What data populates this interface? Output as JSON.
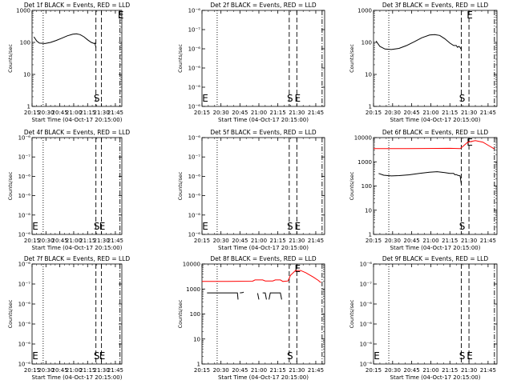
{
  "figure": {
    "panels": [
      {
        "title": "Det 1f BLACK = Events, RED = LLD",
        "ylabel": "Counts/sec",
        "xlabel": "Start Time (04-Oct-17 20:15:00)"
      },
      {
        "title": "Det 2f BLACK = Events, RED = LLD",
        "ylabel": "Counts/sec",
        "xlabel": "Start Time (04-Oct-17 20:15:00)"
      },
      {
        "title": "Det 3f BLACK = Events, RED = LLD",
        "ylabel": "Counts/sec",
        "xlabel": "Start Time (04-Oct-17 20:15:00)"
      },
      {
        "title": "Det 4f BLACK = Events, RED = LLD",
        "ylabel": "Counts/sec",
        "xlabel": "Start Time (04-Oct-17 20:15:00)"
      },
      {
        "title": "Det 5f BLACK = Events, RED = LLD",
        "ylabel": "Counts/sec",
        "xlabel": "Start Time (04-Oct-17 20:15:00)"
      },
      {
        "title": "Det 6f BLACK = Events, RED = LLD",
        "ylabel": "Counts/sec",
        "xlabel": "Start Time (04-Oct-17 20:15:00)"
      },
      {
        "title": "Det 7f BLACK = Events, RED = LLD",
        "ylabel": "Counts/sec",
        "xlabel": "Start Time (04-Oct-17 20:15:00)"
      },
      {
        "title": "Det 8f BLACK = Events, RED = LLD",
        "ylabel": "Counts/sec",
        "xlabel": "Start Time (04-Oct-17 20:15:00)"
      },
      {
        "title": "Det 9f BLACK = Events, RED = LLD",
        "ylabel": "Counts/sec",
        "xlabel": "Start Time (04-Oct-17 20:15:00)"
      }
    ]
  },
  "chart_data": [
    {
      "type": "line",
      "panel": 1,
      "title": "Det 1f BLACK = Events, RED = LLD",
      "xlabel": "Start Time (04-Oct-17 20:15:00)",
      "ylabel": "Counts/sec",
      "x_ticks": [
        "20:15",
        "20:30",
        "20:45",
        "21:00",
        "21:15",
        "21:30",
        "21:45"
      ],
      "xlim_minutes": [
        0,
        97
      ],
      "y_scale": "log",
      "ylim": [
        1,
        1000
      ],
      "y_ticks": [
        "1",
        "10",
        "100",
        "1000"
      ],
      "markers": [
        {
          "label": "",
          "x_minutes": 12,
          "style": "dotted"
        },
        {
          "label": "S",
          "x_minutes": 69,
          "style": "dashed"
        },
        {
          "label": "",
          "x_minutes": 75,
          "style": "dashed"
        },
        {
          "label": "E",
          "x_minutes": 95,
          "style": "dashdot"
        }
      ],
      "series": [
        {
          "color": "#000000",
          "points": [
            [
              2,
              150
            ],
            [
              5,
              110
            ],
            [
              8,
              95
            ],
            [
              14,
              92
            ],
            [
              20,
              100
            ],
            [
              26,
              115
            ],
            [
              32,
              135
            ],
            [
              38,
              160
            ],
            [
              44,
              180
            ],
            [
              48,
              185
            ],
            [
              52,
              175
            ],
            [
              56,
              150
            ],
            [
              60,
              120
            ],
            [
              64,
              100
            ],
            [
              66,
              95
            ],
            [
              67,
              92
            ],
            [
              68,
              95
            ],
            [
              68.5,
              80
            ],
            [
              69,
              70
            ]
          ]
        }
      ]
    },
    {
      "type": "line",
      "panel": 2,
      "title": "Det 2f BLACK = Events, RED = LLD",
      "xlabel": "Start Time (04-Oct-17 20:15:00)",
      "ylabel": "Counts/sec",
      "x_ticks": [
        "20:15",
        "20:30",
        "20:45",
        "21:00",
        "21:15",
        "21:30",
        "21:45"
      ],
      "xlim_minutes": [
        0,
        97
      ],
      "y_scale": "log",
      "ylim": [
        1,
        1e-06
      ],
      "y_ticks": [
        "10⁻⁶",
        "10⁻⁶",
        "10⁻⁶",
        "10⁻⁶",
        "10⁻⁷",
        "10⁻⁶"
      ],
      "markers": [
        {
          "label": "",
          "x_minutes": 12,
          "style": "dotted"
        },
        {
          "label": "S",
          "x_minutes": 69,
          "style": "dashed"
        },
        {
          "label": "E",
          "x_minutes": 75,
          "style": "dashed"
        },
        {
          "label": "",
          "x_minutes": 95,
          "style": "dashdot"
        }
      ],
      "corner_label": "E",
      "series": []
    },
    {
      "type": "line",
      "panel": 3,
      "title": "Det 3f BLACK = Events, RED = LLD",
      "xlabel": "Start Time (04-Oct-17 20:15:00)",
      "ylabel": "Counts/sec",
      "x_ticks": [
        "20:15",
        "20:30",
        "20:45",
        "21:00",
        "21:15",
        "21:30",
        "21:45"
      ],
      "xlim_minutes": [
        0,
        97
      ],
      "y_scale": "log",
      "ylim": [
        1,
        1000
      ],
      "y_ticks": [
        "1",
        "10",
        "100",
        "1000"
      ],
      "markers": [
        {
          "label": "",
          "x_minutes": 12,
          "style": "dotted"
        },
        {
          "label": "S",
          "x_minutes": 69,
          "style": "dashed"
        },
        {
          "label": "E",
          "x_minutes": 75,
          "style": "dashed"
        },
        {
          "label": "",
          "x_minutes": 95,
          "style": "dashdot"
        }
      ],
      "series": [
        {
          "color": "#000000",
          "points": [
            [
              2,
              110
            ],
            [
              5,
              75
            ],
            [
              9,
              62
            ],
            [
              14,
              60
            ],
            [
              20,
              65
            ],
            [
              26,
              80
            ],
            [
              32,
              105
            ],
            [
              38,
              140
            ],
            [
              44,
              170
            ],
            [
              48,
              175
            ],
            [
              52,
              165
            ],
            [
              56,
              130
            ],
            [
              60,
              95
            ],
            [
              63,
              80
            ],
            [
              65,
              80
            ],
            [
              66,
              70
            ],
            [
              67,
              75
            ],
            [
              68,
              70
            ],
            [
              69,
              60
            ]
          ]
        }
      ]
    },
    {
      "type": "line",
      "panel": 4,
      "title": "Det 4f BLACK = Events, RED = LLD",
      "xlabel": "Start Time (04-Oct-17 20:15:00)",
      "ylabel": "Counts/sec",
      "x_ticks": [
        "20:15",
        "20:30",
        "20:45",
        "21:00",
        "21:15",
        "21:30",
        "21:45"
      ],
      "xlim_minutes": [
        0,
        97
      ],
      "y_scale": "log",
      "ylim": [
        1,
        1e-06
      ],
      "y_ticks": [
        "10⁻⁶",
        "10⁻⁶",
        "10⁻⁶",
        "10⁻⁶",
        "10⁻⁷",
        "10⁻⁶"
      ],
      "markers": [
        {
          "label": "",
          "x_minutes": 12,
          "style": "dotted"
        },
        {
          "label": "S",
          "x_minutes": 69,
          "style": "dashed"
        },
        {
          "label": "E",
          "x_minutes": 75,
          "style": "dashed"
        },
        {
          "label": "",
          "x_minutes": 95,
          "style": "dashdot"
        }
      ],
      "corner_label": "E",
      "series": []
    },
    {
      "type": "line",
      "panel": 5,
      "title": "Det 5f BLACK = Events, RED = LLD",
      "xlabel": "Start Time (04-Oct-17 20:15:00)",
      "ylabel": "Counts/sec",
      "x_ticks": [
        "20:15",
        "20:30",
        "20:45",
        "21:00",
        "21:15",
        "21:30",
        "21:45"
      ],
      "xlim_minutes": [
        0,
        97
      ],
      "y_scale": "log",
      "ylim": [
        1,
        1e-06
      ],
      "y_ticks": [
        "10⁻⁶",
        "10⁻⁶",
        "10⁻⁶",
        "10⁻⁶",
        "10⁻⁷",
        "10⁻⁶"
      ],
      "markers": [
        {
          "label": "",
          "x_minutes": 12,
          "style": "dotted"
        },
        {
          "label": "S",
          "x_minutes": 69,
          "style": "dashed"
        },
        {
          "label": "E",
          "x_minutes": 75,
          "style": "dashed"
        },
        {
          "label": "",
          "x_minutes": 95,
          "style": "dashdot"
        }
      ],
      "corner_label": "E",
      "series": []
    },
    {
      "type": "line",
      "panel": 6,
      "title": "Det 6f BLACK = Events, RED = LLD",
      "xlabel": "Start Time (04-Oct-17 20:15:00)",
      "ylabel": "Counts/sec",
      "x_ticks": [
        "20:15",
        "20:30",
        "20:45",
        "21:00",
        "21:15",
        "21:30",
        "21:45"
      ],
      "xlim_minutes": [
        0,
        97
      ],
      "y_scale": "log",
      "ylim": [
        1,
        10000
      ],
      "y_ticks": [
        "1",
        "10",
        "100",
        "1000",
        "10000"
      ],
      "markers": [
        {
          "label": "",
          "x_minutes": 12,
          "style": "dotted"
        },
        {
          "label": "S",
          "x_minutes": 69,
          "style": "dashed"
        },
        {
          "label": "E",
          "x_minutes": 75,
          "style": "dashed"
        },
        {
          "label": "",
          "x_minutes": 95,
          "style": "dashdot"
        }
      ],
      "series": [
        {
          "color": "#ff0000",
          "points": [
            [
              0,
              3500
            ],
            [
              20,
              3500
            ],
            [
              40,
              3550
            ],
            [
              60,
              3600
            ],
            [
              68,
              3500
            ],
            [
              70,
              4200
            ],
            [
              74,
              6500
            ],
            [
              80,
              7500
            ],
            [
              86,
              6500
            ],
            [
              91,
              4500
            ],
            [
              95,
              3400
            ]
          ]
        },
        {
          "color": "#000000",
          "points": [
            [
              4,
              330
            ],
            [
              8,
              280
            ],
            [
              14,
              260
            ],
            [
              20,
              270
            ],
            [
              28,
              290
            ],
            [
              36,
              330
            ],
            [
              44,
              370
            ],
            [
              50,
              390
            ],
            [
              56,
              360
            ],
            [
              60,
              330
            ],
            [
              63,
              330
            ],
            [
              64,
              290
            ],
            [
              65,
              300
            ],
            [
              66,
              280
            ],
            [
              67,
              270
            ],
            [
              68,
              265
            ],
            [
              69,
              120
            ]
          ]
        }
      ]
    },
    {
      "type": "line",
      "panel": 7,
      "title": "Det 7f BLACK = Events, RED = LLD",
      "xlabel": "Start Time (04-Oct-17 20:15:00)",
      "ylabel": "Counts/sec",
      "x_ticks": [
        "20:15",
        "20:30",
        "20:45",
        "21:00",
        "21:15",
        "21:30",
        "21:45"
      ],
      "xlim_minutes": [
        0,
        97
      ],
      "y_scale": "log",
      "ylim": [
        1,
        1e-06
      ],
      "y_ticks": [
        "10⁻⁶",
        "10⁻⁶",
        "10⁻⁶",
        "10⁻⁶",
        "10⁻⁷",
        "10⁻⁶"
      ],
      "markers": [
        {
          "label": "",
          "x_minutes": 12,
          "style": "dotted"
        },
        {
          "label": "S",
          "x_minutes": 69,
          "style": "dashed"
        },
        {
          "label": "E",
          "x_minutes": 75,
          "style": "dashed"
        },
        {
          "label": "",
          "x_minutes": 95,
          "style": "dashdot"
        }
      ],
      "corner_label": "E",
      "series": []
    },
    {
      "type": "line",
      "panel": 8,
      "title": "Det 8f BLACK = Events, RED = LLD",
      "xlabel": "Start Time (04-Oct-17 20:15:00)",
      "ylabel": "Counts/sec",
      "x_ticks": [
        "20:15",
        "20:30",
        "20:45",
        "21:00",
        "21:15",
        "21:30",
        "21:45"
      ],
      "xlim_minutes": [
        0,
        97
      ],
      "y_scale": "log",
      "ylim": [
        1,
        10000
      ],
      "y_ticks": [
        "1",
        "10",
        "100",
        "1000",
        "10000"
      ],
      "markers": [
        {
          "label": "",
          "x_minutes": 12,
          "style": "dotted"
        },
        {
          "label": "S",
          "x_minutes": 69,
          "style": "dashed"
        },
        {
          "label": "E",
          "x_minutes": 75,
          "style": "dashed"
        },
        {
          "label": "",
          "x_minutes": 95,
          "style": "dashdot"
        }
      ],
      "series": [
        {
          "color": "#ff0000",
          "points": [
            [
              0,
              2000
            ],
            [
              20,
              2000
            ],
            [
              40,
              2050
            ],
            [
              42,
              2300
            ],
            [
              48,
              2300
            ],
            [
              50,
              2100
            ],
            [
              56,
              2100
            ],
            [
              58,
              2300
            ],
            [
              62,
              2300
            ],
            [
              64,
              2000
            ],
            [
              68,
              2100
            ],
            [
              70,
              3500
            ],
            [
              74,
              5500
            ],
            [
              78,
              5500
            ],
            [
              82,
              4500
            ],
            [
              88,
              3000
            ],
            [
              92,
              2200
            ],
            [
              94,
              1800
            ]
          ]
        },
        {
          "color": "#000000",
          "points": [
            [
              4,
              700
            ],
            [
              28,
              700
            ],
            [
              28.5,
              380
            ]
          ]
        },
        {
          "color": "#000000",
          "points": [
            [
              30,
              700
            ],
            [
              32,
              720
            ],
            [
              33,
              750
            ]
          ]
        },
        {
          "color": "#000000",
          "points": [
            [
              44,
              680
            ],
            [
              45,
              380
            ]
          ]
        },
        {
          "color": "#000000",
          "points": [
            [
              48,
              700
            ],
            [
              50,
              700
            ],
            [
              51,
              380
            ]
          ]
        },
        {
          "color": "#000000",
          "points": [
            [
              53,
              380
            ],
            [
              54,
              700
            ],
            [
              58,
              700
            ],
            [
              62,
              700
            ],
            [
              63,
              380
            ]
          ]
        }
      ]
    },
    {
      "type": "line",
      "panel": 9,
      "title": "Det 9f BLACK = Events, RED = LLD",
      "xlabel": "Start Time (04-Oct-17 20:15:00)",
      "ylabel": "Counts/sec",
      "x_ticks": [
        "20:15",
        "20:30",
        "20:45",
        "21:00",
        "21:15",
        "21:30",
        "21:45"
      ],
      "xlim_minutes": [
        0,
        97
      ],
      "y_scale": "log",
      "ylim": [
        1,
        1e-06
      ],
      "y_ticks": [
        "10⁻⁶",
        "10⁻⁶",
        "10⁻⁶",
        "10⁻⁶",
        "10⁻⁷",
        "10⁻⁶"
      ],
      "markers": [
        {
          "label": "",
          "x_minutes": 12,
          "style": "dotted"
        },
        {
          "label": "S",
          "x_minutes": 69,
          "style": "dashed"
        },
        {
          "label": "E",
          "x_minutes": 75,
          "style": "dashed"
        },
        {
          "label": "",
          "x_minutes": 95,
          "style": "dashdot"
        }
      ],
      "corner_label": "E",
      "series": []
    }
  ]
}
